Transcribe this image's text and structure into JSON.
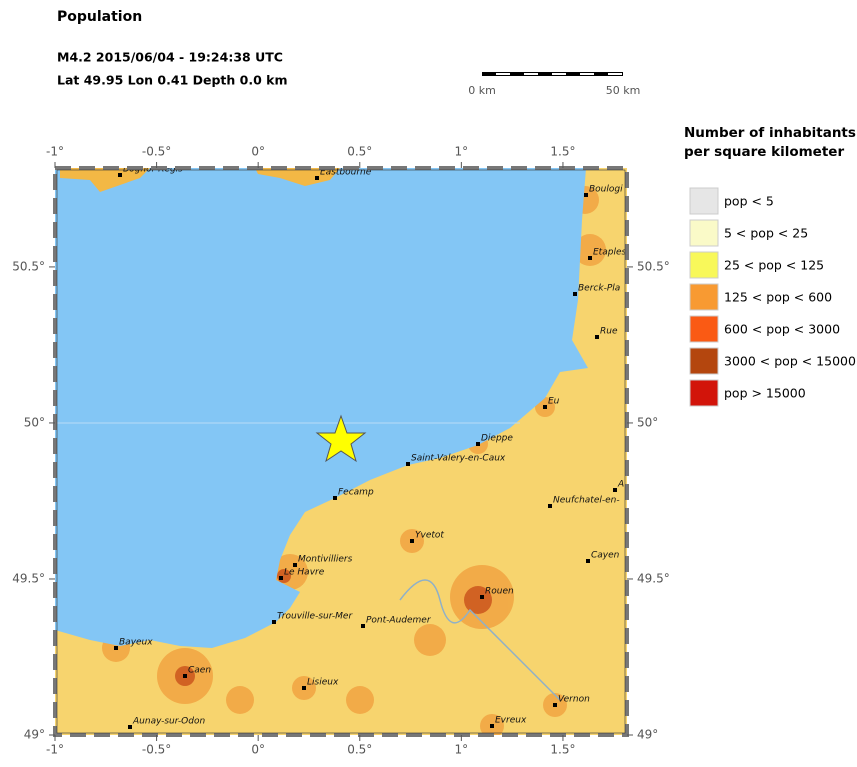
{
  "header": {
    "title": "Population",
    "event": "M4.2  2015/06/04 - 19:24:38 UTC",
    "location": "Lat 49.95    Lon  0.41     Depth  0.0 km"
  },
  "scale_bar": {
    "start": "0 km",
    "end": "50 km"
  },
  "map": {
    "xlim": [
      -1,
      1.83
    ],
    "ylim": [
      49,
      50.817
    ],
    "xticks": [
      {
        "value": -1,
        "label": "-1°"
      },
      {
        "value": -0.5,
        "label": "-0.5°"
      },
      {
        "value": 0,
        "label": "0°"
      },
      {
        "value": 0.5,
        "label": "0.5°"
      },
      {
        "value": 1,
        "label": "1°"
      },
      {
        "value": 1.5,
        "label": "1.5°"
      }
    ],
    "yticks": [
      {
        "value": 49,
        "label": "49°"
      },
      {
        "value": 49.5,
        "label": "49.5°"
      },
      {
        "value": 50,
        "label": "50°"
      },
      {
        "value": 50.5,
        "label": "50.5°"
      }
    ],
    "towns": [
      "Bognor Regis",
      "Eastbourne",
      "Boulogi",
      "Etaples",
      "Berck-Pla",
      "Rue",
      "Eu",
      "Dieppe",
      "Saint-Valery-en-Caux",
      "Fecamp",
      "Neufchatel-en-",
      "A",
      "Yvetot",
      "Cayen",
      "Montivilliers",
      "Le Havre",
      "Rouen",
      "Trouville-sur-Mer",
      "Pont-Audemer",
      "Bayeux",
      "Caen",
      "Lisieux",
      "Vernon",
      "Evreux",
      "Aunay-sur-Odon"
    ]
  },
  "legend": {
    "title": [
      "Number of inhabitants",
      "per square kilometer"
    ],
    "items": [
      {
        "label": "pop < 5",
        "color": "#e6e6e6"
      },
      {
        "label": "5 < pop < 25",
        "color": "#fafac8"
      },
      {
        "label": "25 < pop < 125",
        "color": "#f8f85a"
      },
      {
        "label": "125 < pop < 600",
        "color": "#f89a32"
      },
      {
        "label": "600 < pop < 3000",
        "color": "#fa5a14"
      },
      {
        "label": "3000 < pop < 15000",
        "color": "#b4460e"
      },
      {
        "label": "pop > 15000",
        "color": "#d2140a"
      }
    ]
  }
}
